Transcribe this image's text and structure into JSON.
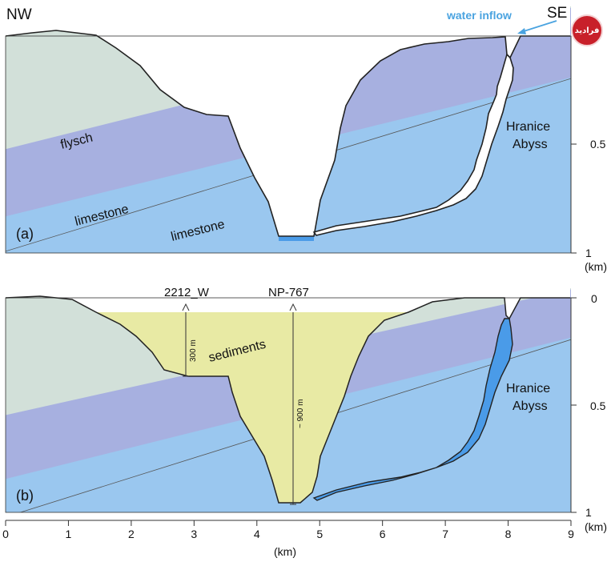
{
  "corner_labels": {
    "left": "NW",
    "right": "SE"
  },
  "panel_a": {
    "tag": "(a)",
    "layers": {
      "upper": "flysch",
      "middle": "limestone",
      "lower": "limestone"
    },
    "feature": [
      "Hranice",
      "Abyss"
    ],
    "inflow": "water inflow",
    "depth_ticks": [
      "0.5",
      "1"
    ],
    "depth_unit": "(km)"
  },
  "panel_b": {
    "tag": "(b)",
    "fill": "sediments",
    "boreholes": [
      {
        "name": "2212_W",
        "depth": "300 m"
      },
      {
        "name": "NP-767",
        "depth": "~ 900 m"
      }
    ],
    "feature": [
      "Hranice",
      "Abyss"
    ],
    "depth_ticks": [
      "0",
      "0.5",
      "1"
    ],
    "depth_unit": "(km)"
  },
  "x_axis": {
    "ticks": [
      "0",
      "1",
      "2",
      "3",
      "4",
      "5",
      "6",
      "7",
      "8",
      "9"
    ],
    "label": "(km)"
  },
  "colors": {
    "flysch": "#d2e0d9",
    "limestone_upper": "#a7b0e0",
    "limestone_lower": "#9ac7ef",
    "sediments": "#e8eaa4",
    "water": "#4a9be8",
    "inflow": "#4aa3e0"
  },
  "logo": "فرادید"
}
